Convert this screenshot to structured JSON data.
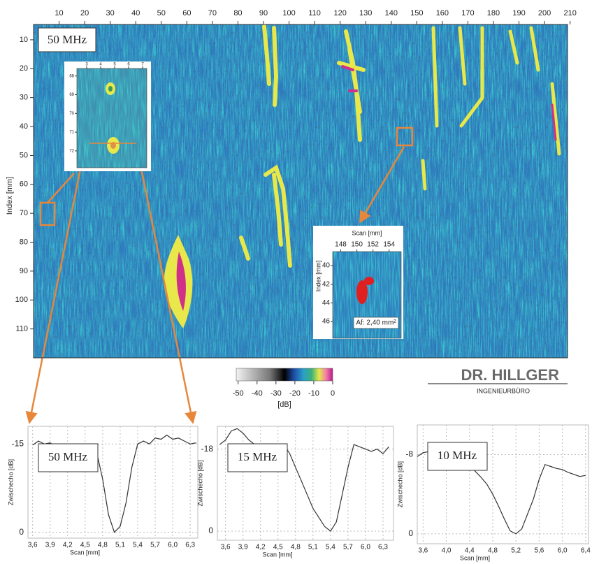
{
  "chart_data": [
    {
      "type": "heatmap",
      "y_label": "Index [mm]",
      "annotation": "50 MHz",
      "xlim": [
        0,
        209
      ],
      "ylim": [
        4.7,
        120
      ],
      "xticks": [
        10,
        20,
        30,
        40,
        50,
        60,
        70,
        80,
        90,
        100,
        110,
        120,
        130,
        140,
        150,
        160,
        170,
        180,
        190,
        200,
        210
      ],
      "yticks": [
        10,
        20,
        30,
        40,
        50,
        60,
        70,
        80,
        90,
        100,
        110
      ],
      "colorbar": {
        "lim": [
          -51,
          0
        ],
        "ticks": [
          -50,
          -40,
          -30,
          -20,
          -10,
          0
        ],
        "label": "[dB]"
      }
    },
    {
      "type": "inset",
      "xlim": [
        2.3,
        7.3
      ],
      "ylim": [
        67.6,
        72.9
      ],
      "xticks": [
        3,
        4,
        5,
        6,
        7
      ],
      "yticks": [
        68,
        69,
        70,
        71,
        72
      ]
    },
    {
      "type": "inset",
      "x_label": "Scan [mm]",
      "y_label": "Index [mm]",
      "annotation": "Af: 2,40 mm²",
      "xlim": [
        147,
        155.5
      ],
      "ylim": [
        38.5,
        47.8
      ],
      "xticks": [
        148,
        150,
        152,
        154
      ],
      "yticks": [
        40,
        42,
        44,
        46
      ]
    },
    {
      "type": "line",
      "annotation": "50 MHz",
      "x_label": "Scan [mm]",
      "y_label": "Zwischecho [dB]",
      "color": "#333333",
      "xlim": [
        3.52,
        6.43
      ],
      "ylim": [
        -18,
        1
      ],
      "xticks": [
        {
          "value": 3.6,
          "label": "3,6"
        },
        {
          "value": 3.9,
          "label": "3,9"
        },
        {
          "value": 4.2,
          "label": "4,2"
        },
        {
          "value": 4.5,
          "label": "4,5"
        },
        {
          "value": 4.8,
          "label": "4,8"
        },
        {
          "value": 5.1,
          "label": "5,1"
        },
        {
          "value": 5.4,
          "label": "5,4"
        },
        {
          "value": 5.7,
          "label": "5,7"
        },
        {
          "value": 6.0,
          "label": "6,0"
        },
        {
          "value": 6.3,
          "label": "6,3"
        }
      ],
      "yticks": [
        -15,
        0
      ],
      "x": [
        3.6,
        3.7,
        3.8,
        3.9,
        4.0,
        4.1,
        4.2,
        4.3,
        4.4,
        4.5,
        4.6,
        4.7,
        4.8,
        4.9,
        5.0,
        5.1,
        5.2,
        5.3,
        5.4,
        5.5,
        5.6,
        5.7,
        5.8,
        5.9,
        6.0,
        6.1,
        6.2,
        6.3,
        6.4
      ],
      "values": [
        -14.8,
        -15.5,
        -15,
        -15.2,
        -14.5,
        -12.8,
        -13,
        -14.5,
        -14.2,
        -14.8,
        -14.6,
        -13.5,
        -9,
        -3,
        0,
        -1,
        -5,
        -11,
        -15,
        -15.5,
        -15,
        -16,
        -15.8,
        -16.5,
        -15.8,
        -16,
        -15.5,
        -15,
        -15.2
      ]
    },
    {
      "type": "line",
      "annotation": "15 MHz",
      "x_label": "Scan [mm]",
      "y_label": "Zwischecho [dB]",
      "color": "#333333",
      "xlim": [
        3.46,
        6.48
      ],
      "ylim": [
        -23,
        2
      ],
      "xticks": [
        {
          "value": 3.6,
          "label": "3,6"
        },
        {
          "value": 3.9,
          "label": "3,9"
        },
        {
          "value": 4.2,
          "label": "4,2"
        },
        {
          "value": 4.5,
          "label": "4,5"
        },
        {
          "value": 4.8,
          "label": "4,8"
        },
        {
          "value": 5.1,
          "label": "5,1"
        },
        {
          "value": 5.4,
          "label": "5,4"
        },
        {
          "value": 5.7,
          "label": "5,7"
        },
        {
          "value": 6.0,
          "label": "6,0"
        },
        {
          "value": 6.3,
          "label": "6,3"
        }
      ],
      "yticks": [
        -18,
        0
      ],
      "x": [
        3.5,
        3.6,
        3.7,
        3.8,
        3.9,
        4.0,
        4.1,
        4.2,
        4.3,
        4.4,
        4.5,
        4.6,
        4.7,
        4.8,
        4.9,
        5.0,
        5.1,
        5.2,
        5.3,
        5.4,
        5.5,
        5.6,
        5.7,
        5.8,
        5.9,
        6.0,
        6.1,
        6.2,
        6.3,
        6.4
      ],
      "values": [
        -19,
        -20,
        -22,
        -22.5,
        -21.5,
        -20,
        -19,
        -18.5,
        -19,
        -17,
        -16,
        -19,
        -17,
        -14,
        -11,
        -8,
        -5,
        -3,
        -1,
        0,
        -2,
        -8,
        -14,
        -19,
        -18.5,
        -18,
        -17.5,
        -18,
        -17,
        -18.5
      ]
    },
    {
      "type": "line",
      "annotation": "10 MHz",
      "x_label": "Scan [mm]",
      "y_label": "Zwischecho [dB]",
      "color": "#333333",
      "xlim": [
        3.5,
        6.45
      ],
      "ylim": [
        -11,
        1
      ],
      "xticks": [
        {
          "value": 3.6,
          "label": "3,6"
        },
        {
          "value": 4.0,
          "label": "4,0"
        },
        {
          "value": 4.4,
          "label": "4,4"
        },
        {
          "value": 4.8,
          "label": "4,8"
        },
        {
          "value": 5.2,
          "label": "5,2"
        },
        {
          "value": 5.6,
          "label": "5,6"
        },
        {
          "value": 6.0,
          "label": "6,0"
        },
        {
          "value": 6.4,
          "label": "6,4"
        }
      ],
      "yticks": [
        -8,
        0
      ],
      "x": [
        3.5,
        3.6,
        3.7,
        3.8,
        3.9,
        4.0,
        4.1,
        4.2,
        4.3,
        4.4,
        4.5,
        4.6,
        4.7,
        4.8,
        4.9,
        5.0,
        5.1,
        5.2,
        5.3,
        5.4,
        5.5,
        5.6,
        5.7,
        5.8,
        5.9,
        6.0,
        6.1,
        6.2,
        6.3,
        6.4
      ],
      "values": [
        -7.8,
        -8.2,
        -8.3,
        -8,
        -7.6,
        -7.3,
        -7.2,
        -7.5,
        -7.6,
        -7,
        -6.3,
        -5.7,
        -5,
        -4,
        -2.8,
        -1.5,
        -0.3,
        0,
        -0.5,
        -2,
        -3.5,
        -5.5,
        -7,
        -6.8,
        -6.6,
        -6.5,
        -6.2,
        -6,
        -5.8,
        -5.9
      ]
    }
  ],
  "logo": {
    "name": "DR. HILLGER",
    "subtitle": "INGENIEURBÜRO"
  }
}
